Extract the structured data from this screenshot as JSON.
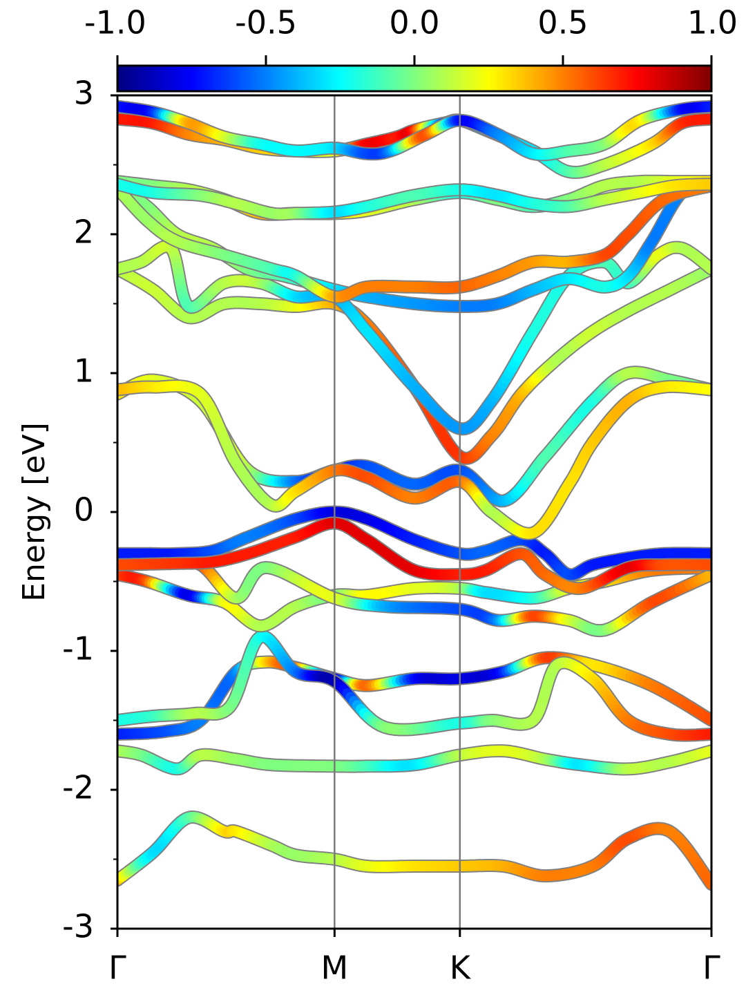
{
  "chart_data": {
    "type": "line",
    "title": "",
    "ylabel": "Energy [eV]",
    "xlabel": "",
    "ylim": [
      -3,
      3
    ],
    "xlim": [
      0,
      1
    ],
    "y_ticks": [
      3,
      2,
      1,
      0,
      -1,
      -2,
      -3
    ],
    "y_tick_labels": [
      "3",
      "2",
      "1",
      "0",
      "-1",
      "-2",
      "-3"
    ],
    "x_ticks": [
      {
        "pos": 0.0,
        "label": "Γ"
      },
      {
        "pos": 0.3655,
        "label": "M"
      },
      {
        "pos": 0.5765,
        "label": "K"
      },
      {
        "pos": 1.0,
        "label": "Γ"
      }
    ],
    "colorbar": {
      "colormap": "jet",
      "range": [
        -1.0,
        1.0
      ],
      "ticks": [
        -1.0,
        -0.5,
        0.0,
        0.5,
        1.0
      ],
      "tick_labels": [
        "-1.0",
        "-0.5",
        "0.0",
        "0.5",
        "1.0"
      ],
      "placement": "top"
    },
    "series": [
      {
        "x": [
          0,
          0.06,
          0.12,
          0.18,
          0.2,
          0.26,
          0.3,
          0.3655,
          0.42,
          0.5,
          0.5765,
          0.65,
          0.72,
          0.8,
          0.86,
          0.93,
          1.0
        ],
        "y": [
          -2.65,
          -2.45,
          -2.2,
          -2.3,
          -2.3,
          -2.4,
          -2.47,
          -2.5,
          -2.55,
          -2.55,
          -2.55,
          -2.55,
          -2.62,
          -2.55,
          -2.35,
          -2.3,
          -2.68
        ],
        "c": [
          0.4,
          -0.3,
          -0.1,
          0.3,
          0.3,
          0.1,
          0.05,
          0.1,
          0.2,
          0.3,
          0.35,
          0.4,
          0.5,
          0.5,
          0.6,
          0.5,
          0.55
        ]
      },
      {
        "x": [
          0,
          0.04,
          0.1,
          0.14,
          0.2,
          0.26,
          0.3655,
          0.42,
          0.5,
          0.5765,
          0.65,
          0.72,
          0.78,
          0.86,
          0.93,
          1.0
        ],
        "y": [
          -1.72,
          -1.75,
          -1.85,
          -1.75,
          -1.78,
          -1.82,
          -1.83,
          -1.83,
          -1.82,
          -1.75,
          -1.72,
          -1.78,
          -1.82,
          -1.85,
          -1.8,
          -1.72
        ],
        "c": [
          0.1,
          0.0,
          -0.2,
          0.1,
          0.05,
          0.0,
          0.0,
          -0.1,
          -0.3,
          0.1,
          0.2,
          0.1,
          -0.3,
          0.1,
          0.1,
          0.2
        ]
      },
      {
        "x": [
          0,
          0.08,
          0.14,
          0.2,
          0.25,
          0.3,
          0.3655,
          0.42,
          0.5,
          0.5765,
          0.65,
          0.72,
          0.8,
          0.9,
          1.0
        ],
        "y": [
          -1.6,
          -1.58,
          -1.5,
          -1.15,
          -1.08,
          -1.12,
          -1.2,
          -1.25,
          -1.2,
          -1.2,
          -1.15,
          -1.05,
          -1.1,
          -1.25,
          -1.5
        ],
        "c": [
          -0.7,
          -0.6,
          -0.5,
          -0.5,
          0.3,
          0.5,
          -0.8,
          0.55,
          -0.7,
          -0.8,
          -0.7,
          0.6,
          0.3,
          0.5,
          0.6
        ]
      },
      {
        "x": [
          0,
          0.06,
          0.13,
          0.19,
          0.24,
          0.3,
          0.3655,
          0.45,
          0.5765,
          0.63,
          0.7,
          0.74,
          0.8,
          0.86,
          0.93,
          1.0
        ],
        "y": [
          -1.5,
          -1.47,
          -1.45,
          -1.4,
          -0.9,
          -1.15,
          -1.22,
          -1.55,
          -1.52,
          -1.5,
          -1.5,
          -1.1,
          -1.2,
          -1.5,
          -1.6,
          -1.6
        ],
        "c": [
          -0.2,
          -0.15,
          0.1,
          0.0,
          -0.2,
          -0.5,
          -0.9,
          0.0,
          -0.2,
          0.0,
          0.1,
          0.1,
          0.3,
          0.5,
          0.6,
          0.7
        ]
      },
      {
        "x": [
          0,
          0.05,
          0.12,
          0.18,
          0.24,
          0.3,
          0.3655,
          0.42,
          0.5,
          0.5765,
          0.62,
          0.7,
          0.76,
          0.82,
          0.9,
          1.0
        ],
        "y": [
          -0.45,
          -0.5,
          -0.6,
          -0.65,
          -0.82,
          -0.68,
          -0.6,
          -0.6,
          -0.55,
          -0.55,
          -0.58,
          -0.62,
          -0.55,
          -0.5,
          -0.42,
          -0.4
        ],
        "c": [
          0.6,
          0.6,
          -0.8,
          0.2,
          0.1,
          0.1,
          0.0,
          0.25,
          0.2,
          0.1,
          -0.3,
          -0.2,
          0.2,
          0.3,
          0.5,
          0.5
        ]
      },
      {
        "x": [
          0,
          0.08,
          0.14,
          0.2,
          0.25,
          0.3655,
          0.45,
          0.5765,
          0.64,
          0.7,
          0.76,
          0.82,
          0.9,
          1.0
        ],
        "y": [
          -0.35,
          -0.35,
          -0.38,
          -0.62,
          -0.4,
          -0.62,
          -0.68,
          -0.7,
          -0.78,
          -0.75,
          -0.78,
          -0.85,
          -0.65,
          -0.45
        ],
        "c": [
          0.65,
          0.7,
          0.6,
          0.1,
          0.0,
          0.2,
          -0.4,
          -0.6,
          -0.5,
          0.6,
          0.2,
          0.0,
          0.6,
          0.4
        ]
      },
      {
        "x": [
          0,
          0.05,
          0.1,
          0.16,
          0.22,
          0.3,
          0.3655,
          0.42,
          0.5,
          0.5765,
          0.62,
          0.68,
          0.72,
          0.76,
          0.8,
          0.86,
          0.92,
          1.0
        ],
        "y": [
          -0.3,
          -0.3,
          -0.3,
          -0.28,
          -0.18,
          -0.05,
          0.0,
          -0.05,
          -0.2,
          -0.3,
          -0.28,
          -0.2,
          -0.3,
          -0.45,
          -0.38,
          -0.33,
          -0.3,
          -0.3
        ],
        "c": [
          -0.7,
          -0.7,
          -0.7,
          -0.6,
          -0.5,
          -0.6,
          -0.8,
          -0.8,
          -0.7,
          -0.6,
          -0.55,
          -0.6,
          -0.7,
          -0.6,
          -0.7,
          -0.7,
          -0.7,
          -0.7
        ]
      },
      {
        "x": [
          0,
          0.1,
          0.16,
          0.22,
          0.3,
          0.3655,
          0.42,
          0.5,
          0.5765,
          0.62,
          0.68,
          0.72,
          0.78,
          0.86,
          0.92,
          1.0
        ],
        "y": [
          -0.38,
          -0.37,
          -0.36,
          -0.3,
          -0.18,
          -0.08,
          -0.2,
          -0.42,
          -0.45,
          -0.42,
          -0.3,
          -0.45,
          -0.55,
          -0.4,
          -0.38,
          -0.38
        ],
        "c": [
          0.6,
          0.65,
          0.7,
          0.7,
          0.7,
          0.8,
          0.8,
          0.8,
          0.7,
          0.7,
          0.6,
          0.55,
          0.5,
          0.8,
          0.6,
          0.6
        ]
      },
      {
        "x": [
          0,
          0.06,
          0.14,
          0.22,
          0.3,
          0.3655,
          0.42,
          0.5,
          0.5765,
          0.65,
          0.72,
          0.8,
          0.86,
          0.93,
          1.0
        ],
        "y": [
          0.85,
          0.95,
          0.8,
          0.3,
          0.22,
          0.3,
          0.33,
          0.2,
          0.3,
          0.08,
          0.4,
          0.8,
          1.0,
          0.95,
          0.88
        ],
        "c": [
          0.3,
          0.2,
          0.15,
          0.1,
          -0.5,
          -0.7,
          -0.6,
          -0.55,
          -0.6,
          -0.4,
          -0.1,
          -0.2,
          0.1,
          0.0,
          -0.05
        ]
      },
      {
        "x": [
          0,
          0.06,
          0.14,
          0.2,
          0.26,
          0.3,
          0.3655,
          0.42,
          0.5,
          0.5765,
          0.63,
          0.7,
          0.76,
          0.8,
          0.86,
          0.92,
          1.0
        ],
        "y": [
          0.88,
          0.9,
          0.85,
          0.35,
          0.05,
          0.15,
          0.3,
          0.25,
          0.1,
          0.22,
          0.0,
          -0.15,
          0.2,
          0.5,
          0.8,
          0.9,
          0.88
        ],
        "c": [
          0.4,
          0.3,
          0.2,
          0.1,
          0.1,
          0.3,
          0.5,
          0.6,
          0.5,
          0.55,
          0.1,
          0.3,
          0.3,
          0.35,
          0.4,
          0.3,
          0.25
        ]
      },
      {
        "x": [
          0,
          0.06,
          0.12,
          0.18,
          0.24,
          0.3,
          0.3655,
          0.42,
          0.5,
          0.5765,
          0.63,
          0.68,
          0.74,
          0.8,
          0.86,
          0.93,
          1.0
        ],
        "y": [
          1.75,
          1.6,
          1.4,
          1.5,
          1.5,
          1.48,
          1.5,
          1.35,
          0.9,
          0.4,
          0.55,
          0.85,
          1.1,
          1.3,
          1.45,
          1.6,
          1.75
        ],
        "c": [
          0.1,
          0.15,
          0.1,
          0.1,
          0.1,
          0.2,
          0.4,
          0.5,
          0.6,
          0.65,
          0.5,
          0.4,
          0.1,
          0.15,
          0.1,
          0.1,
          0.05
        ]
      },
      {
        "x": [
          0,
          0.04,
          0.09,
          0.12,
          0.18,
          0.24,
          0.3,
          0.3655,
          0.42,
          0.5,
          0.5765,
          0.63,
          0.7,
          0.76,
          0.82,
          0.86,
          0.91,
          0.95,
          1.0
        ],
        "y": [
          1.75,
          1.8,
          1.9,
          1.48,
          1.65,
          1.65,
          1.55,
          1.55,
          1.3,
          0.9,
          0.6,
          0.8,
          1.3,
          1.7,
          1.8,
          1.65,
          1.85,
          1.9,
          1.75
        ],
        "c": [
          0.1,
          0.1,
          0.15,
          -0.1,
          0.1,
          0.1,
          -0.3,
          -0.4,
          -0.3,
          -0.4,
          -0.45,
          -0.4,
          -0.2,
          -0.2,
          -0.1,
          -0.15,
          0.2,
          0.1,
          0.1
        ]
      },
      {
        "x": [
          0,
          0.05,
          0.1,
          0.16,
          0.22,
          0.28,
          0.3655,
          0.42,
          0.5,
          0.5765,
          0.64,
          0.7,
          0.76,
          0.82,
          0.86,
          0.9,
          0.95,
          1.0
        ],
        "y": [
          2.35,
          2.2,
          2.0,
          1.9,
          1.75,
          1.7,
          1.6,
          1.55,
          1.5,
          1.48,
          1.5,
          1.6,
          1.68,
          1.62,
          1.7,
          1.95,
          2.3,
          2.38
        ],
        "c": [
          0.05,
          0.0,
          0.1,
          0.1,
          0.0,
          -0.1,
          -0.3,
          -0.4,
          -0.45,
          -0.5,
          -0.5,
          -0.4,
          -0.3,
          -0.2,
          -0.3,
          -0.5,
          -0.5,
          -0.6
        ]
      },
      {
        "x": [
          0,
          0.05,
          0.1,
          0.18,
          0.26,
          0.3,
          0.3655,
          0.42,
          0.5,
          0.5765,
          0.64,
          0.7,
          0.76,
          0.82,
          0.86,
          0.92,
          1.0
        ],
        "y": [
          2.33,
          2.1,
          1.95,
          1.85,
          1.75,
          1.7,
          1.55,
          1.62,
          1.62,
          1.62,
          1.7,
          1.8,
          1.8,
          1.85,
          2.0,
          2.25,
          2.35
        ],
        "c": [
          0.1,
          0.05,
          0.1,
          0.0,
          -0.1,
          -0.2,
          0.4,
          0.5,
          0.5,
          0.55,
          0.5,
          0.45,
          0.4,
          0.6,
          0.6,
          0.55,
          0.5
        ]
      },
      {
        "x": [
          0,
          0.06,
          0.12,
          0.18,
          0.24,
          0.3,
          0.3655,
          0.42,
          0.5,
          0.5765,
          0.64,
          0.7,
          0.76,
          0.82,
          0.88,
          0.94,
          1.0
        ],
        "y": [
          2.38,
          2.35,
          2.32,
          2.25,
          2.15,
          2.15,
          2.15,
          2.17,
          2.25,
          2.3,
          2.25,
          2.2,
          2.25,
          2.35,
          2.38,
          2.38,
          2.38
        ],
        "c": [
          0.0,
          0.0,
          0.1,
          0.15,
          0.4,
          0.45,
          0.3,
          0.2,
          0.1,
          -0.2,
          0.0,
          -0.1,
          0.0,
          0.1,
          0.1,
          0.2,
          0.3
        ]
      },
      {
        "x": [
          0,
          0.06,
          0.14,
          0.2,
          0.26,
          0.3,
          0.3655,
          0.42,
          0.5,
          0.5765,
          0.64,
          0.7,
          0.76,
          0.82,
          0.88,
          0.94,
          1.0
        ],
        "y": [
          2.36,
          2.3,
          2.28,
          2.22,
          2.15,
          2.15,
          2.16,
          2.2,
          2.28,
          2.32,
          2.28,
          2.22,
          2.2,
          2.25,
          2.3,
          2.35,
          2.36
        ],
        "c": [
          -0.2,
          -0.2,
          0.0,
          0.1,
          0.05,
          0.05,
          -0.3,
          -0.2,
          -0.1,
          -0.2,
          -0.3,
          -0.2,
          -0.1,
          0.1,
          0.2,
          0.3,
          0.35
        ]
      },
      {
        "x": [
          0,
          0.06,
          0.12,
          0.18,
          0.24,
          0.3,
          0.3655,
          0.42,
          0.47,
          0.5,
          0.55,
          0.5765,
          0.62,
          0.7,
          0.76,
          0.82,
          0.9,
          0.95,
          1.0
        ],
        "y": [
          2.83,
          2.8,
          2.72,
          2.68,
          2.62,
          2.6,
          2.6,
          2.65,
          2.7,
          2.75,
          2.8,
          2.82,
          2.75,
          2.6,
          2.45,
          2.5,
          2.65,
          2.8,
          2.83
        ],
        "c": [
          0.7,
          0.7,
          0.5,
          0.4,
          0.35,
          0.3,
          0.2,
          0.75,
          0.7,
          0.7,
          -0.6,
          -0.5,
          -0.4,
          -0.3,
          -0.1,
          0.1,
          0.3,
          0.65,
          0.7
        ]
      },
      {
        "x": [
          0,
          0.06,
          0.12,
          0.18,
          0.24,
          0.3,
          0.3655,
          0.42,
          0.46,
          0.52,
          0.5765,
          0.64,
          0.7,
          0.76,
          0.82,
          0.88,
          0.95,
          1.0
        ],
        "y": [
          2.92,
          2.88,
          2.8,
          2.7,
          2.65,
          2.6,
          2.62,
          2.58,
          2.6,
          2.72,
          2.82,
          2.72,
          2.58,
          2.6,
          2.65,
          2.82,
          2.9,
          2.92
        ],
        "c": [
          -0.7,
          -0.7,
          0.4,
          0.2,
          -0.2,
          -0.25,
          -0.3,
          -0.6,
          -0.5,
          0.6,
          -0.7,
          -0.5,
          -0.3,
          -0.1,
          0.0,
          0.3,
          -0.7,
          -0.7
        ]
      }
    ]
  }
}
